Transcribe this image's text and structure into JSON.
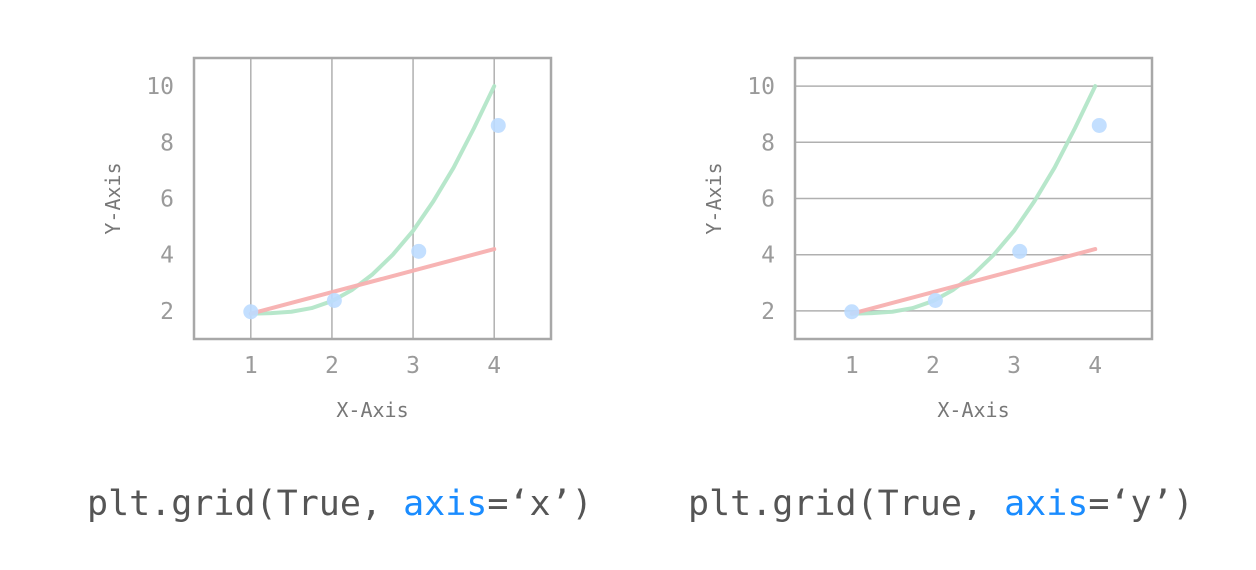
{
  "chart_data": [
    {
      "type": "line",
      "grid": "x",
      "xlabel": "X-Axis",
      "ylabel": "Y-Axis",
      "xticks": [
        1,
        2,
        3,
        4
      ],
      "yticks": [
        2,
        4,
        6,
        8,
        10
      ],
      "xlim": [
        0.3,
        4.7
      ],
      "ylim": [
        1,
        11
      ],
      "series": [
        {
          "kind": "curve",
          "color": "#b3e6c8",
          "x": [
            1,
            1.25,
            1.5,
            1.75,
            2,
            2.25,
            2.5,
            2.75,
            3,
            3.25,
            3.5,
            3.75,
            4
          ],
          "y": [
            1.9,
            1.92,
            1.97,
            2.1,
            2.35,
            2.75,
            3.3,
            4.0,
            4.85,
            5.9,
            7.1,
            8.5,
            10.0
          ]
        },
        {
          "kind": "line",
          "color": "#f7b0b0",
          "x": [
            1,
            4
          ],
          "y": [
            1.9,
            4.2
          ]
        },
        {
          "kind": "points",
          "color": "#bcdcff",
          "x": [
            1,
            2.03,
            3.07,
            4.05
          ],
          "y": [
            1.97,
            2.37,
            4.12,
            8.6
          ]
        }
      ],
      "caption": {
        "prefix": "plt.grid(True, ",
        "keyword": "axis",
        "suffix": "=‘x’)"
      }
    },
    {
      "type": "line",
      "grid": "y",
      "xlabel": "X-Axis",
      "ylabel": "Y-Axis",
      "xticks": [
        1,
        2,
        3,
        4
      ],
      "yticks": [
        2,
        4,
        6,
        8,
        10
      ],
      "xlim": [
        0.3,
        4.7
      ],
      "ylim": [
        1,
        11
      ],
      "series": [
        {
          "kind": "curve",
          "color": "#b3e6c8",
          "x": [
            1,
            1.25,
            1.5,
            1.75,
            2,
            2.25,
            2.5,
            2.75,
            3,
            3.25,
            3.5,
            3.75,
            4
          ],
          "y": [
            1.9,
            1.92,
            1.97,
            2.1,
            2.35,
            2.75,
            3.3,
            4.0,
            4.85,
            5.9,
            7.1,
            8.5,
            10.0
          ]
        },
        {
          "kind": "line",
          "color": "#f7b0b0",
          "x": [
            1,
            4
          ],
          "y": [
            1.9,
            4.2
          ]
        },
        {
          "kind": "points",
          "color": "#bcdcff",
          "x": [
            1,
            2.03,
            3.07,
            4.05
          ],
          "y": [
            1.97,
            2.37,
            4.12,
            8.6
          ]
        }
      ],
      "caption": {
        "prefix": "plt.grid(True, ",
        "keyword": "axis",
        "suffix": "=‘y’)"
      }
    }
  ]
}
